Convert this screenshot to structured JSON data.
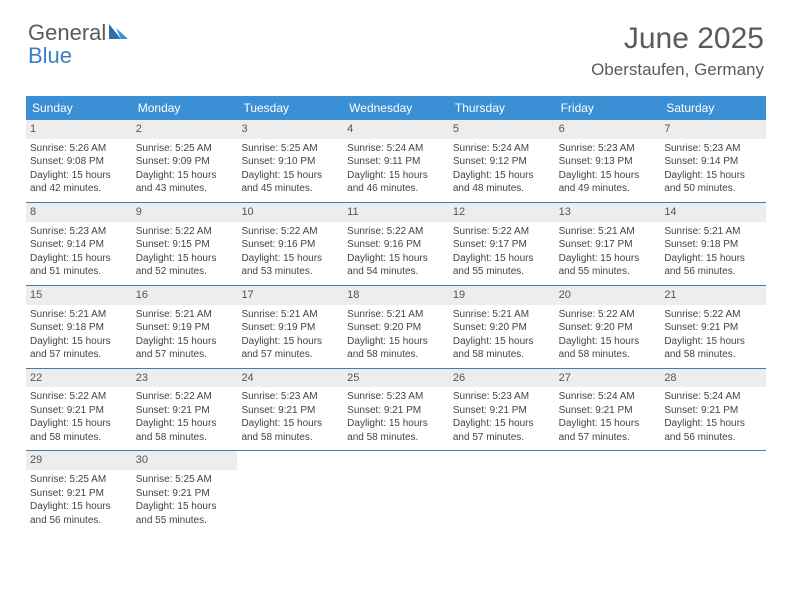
{
  "logo": {
    "text1": "General",
    "text2": "Blue"
  },
  "title": "June 2025",
  "location": "Oberstaufen, Germany",
  "colors": {
    "header_bg": "#3b8fd4",
    "header_text": "#ffffff",
    "daynum_bg": "#ededed",
    "border": "#3b7fb4",
    "body_text": "#444444",
    "title_text": "#5a5a5a",
    "logo_blue": "#3b7fc4"
  },
  "day_headers": [
    "Sunday",
    "Monday",
    "Tuesday",
    "Wednesday",
    "Thursday",
    "Friday",
    "Saturday"
  ],
  "weeks": [
    [
      {
        "n": "1",
        "sr": "Sunrise: 5:26 AM",
        "ss": "Sunset: 9:08 PM",
        "d1": "Daylight: 15 hours",
        "d2": "and 42 minutes."
      },
      {
        "n": "2",
        "sr": "Sunrise: 5:25 AM",
        "ss": "Sunset: 9:09 PM",
        "d1": "Daylight: 15 hours",
        "d2": "and 43 minutes."
      },
      {
        "n": "3",
        "sr": "Sunrise: 5:25 AM",
        "ss": "Sunset: 9:10 PM",
        "d1": "Daylight: 15 hours",
        "d2": "and 45 minutes."
      },
      {
        "n": "4",
        "sr": "Sunrise: 5:24 AM",
        "ss": "Sunset: 9:11 PM",
        "d1": "Daylight: 15 hours",
        "d2": "and 46 minutes."
      },
      {
        "n": "5",
        "sr": "Sunrise: 5:24 AM",
        "ss": "Sunset: 9:12 PM",
        "d1": "Daylight: 15 hours",
        "d2": "and 48 minutes."
      },
      {
        "n": "6",
        "sr": "Sunrise: 5:23 AM",
        "ss": "Sunset: 9:13 PM",
        "d1": "Daylight: 15 hours",
        "d2": "and 49 minutes."
      },
      {
        "n": "7",
        "sr": "Sunrise: 5:23 AM",
        "ss": "Sunset: 9:14 PM",
        "d1": "Daylight: 15 hours",
        "d2": "and 50 minutes."
      }
    ],
    [
      {
        "n": "8",
        "sr": "Sunrise: 5:23 AM",
        "ss": "Sunset: 9:14 PM",
        "d1": "Daylight: 15 hours",
        "d2": "and 51 minutes."
      },
      {
        "n": "9",
        "sr": "Sunrise: 5:22 AM",
        "ss": "Sunset: 9:15 PM",
        "d1": "Daylight: 15 hours",
        "d2": "and 52 minutes."
      },
      {
        "n": "10",
        "sr": "Sunrise: 5:22 AM",
        "ss": "Sunset: 9:16 PM",
        "d1": "Daylight: 15 hours",
        "d2": "and 53 minutes."
      },
      {
        "n": "11",
        "sr": "Sunrise: 5:22 AM",
        "ss": "Sunset: 9:16 PM",
        "d1": "Daylight: 15 hours",
        "d2": "and 54 minutes."
      },
      {
        "n": "12",
        "sr": "Sunrise: 5:22 AM",
        "ss": "Sunset: 9:17 PM",
        "d1": "Daylight: 15 hours",
        "d2": "and 55 minutes."
      },
      {
        "n": "13",
        "sr": "Sunrise: 5:21 AM",
        "ss": "Sunset: 9:17 PM",
        "d1": "Daylight: 15 hours",
        "d2": "and 55 minutes."
      },
      {
        "n": "14",
        "sr": "Sunrise: 5:21 AM",
        "ss": "Sunset: 9:18 PM",
        "d1": "Daylight: 15 hours",
        "d2": "and 56 minutes."
      }
    ],
    [
      {
        "n": "15",
        "sr": "Sunrise: 5:21 AM",
        "ss": "Sunset: 9:18 PM",
        "d1": "Daylight: 15 hours",
        "d2": "and 57 minutes."
      },
      {
        "n": "16",
        "sr": "Sunrise: 5:21 AM",
        "ss": "Sunset: 9:19 PM",
        "d1": "Daylight: 15 hours",
        "d2": "and 57 minutes."
      },
      {
        "n": "17",
        "sr": "Sunrise: 5:21 AM",
        "ss": "Sunset: 9:19 PM",
        "d1": "Daylight: 15 hours",
        "d2": "and 57 minutes."
      },
      {
        "n": "18",
        "sr": "Sunrise: 5:21 AM",
        "ss": "Sunset: 9:20 PM",
        "d1": "Daylight: 15 hours",
        "d2": "and 58 minutes."
      },
      {
        "n": "19",
        "sr": "Sunrise: 5:21 AM",
        "ss": "Sunset: 9:20 PM",
        "d1": "Daylight: 15 hours",
        "d2": "and 58 minutes."
      },
      {
        "n": "20",
        "sr": "Sunrise: 5:22 AM",
        "ss": "Sunset: 9:20 PM",
        "d1": "Daylight: 15 hours",
        "d2": "and 58 minutes."
      },
      {
        "n": "21",
        "sr": "Sunrise: 5:22 AM",
        "ss": "Sunset: 9:21 PM",
        "d1": "Daylight: 15 hours",
        "d2": "and 58 minutes."
      }
    ],
    [
      {
        "n": "22",
        "sr": "Sunrise: 5:22 AM",
        "ss": "Sunset: 9:21 PM",
        "d1": "Daylight: 15 hours",
        "d2": "and 58 minutes."
      },
      {
        "n": "23",
        "sr": "Sunrise: 5:22 AM",
        "ss": "Sunset: 9:21 PM",
        "d1": "Daylight: 15 hours",
        "d2": "and 58 minutes."
      },
      {
        "n": "24",
        "sr": "Sunrise: 5:23 AM",
        "ss": "Sunset: 9:21 PM",
        "d1": "Daylight: 15 hours",
        "d2": "and 58 minutes."
      },
      {
        "n": "25",
        "sr": "Sunrise: 5:23 AM",
        "ss": "Sunset: 9:21 PM",
        "d1": "Daylight: 15 hours",
        "d2": "and 58 minutes."
      },
      {
        "n": "26",
        "sr": "Sunrise: 5:23 AM",
        "ss": "Sunset: 9:21 PM",
        "d1": "Daylight: 15 hours",
        "d2": "and 57 minutes."
      },
      {
        "n": "27",
        "sr": "Sunrise: 5:24 AM",
        "ss": "Sunset: 9:21 PM",
        "d1": "Daylight: 15 hours",
        "d2": "and 57 minutes."
      },
      {
        "n": "28",
        "sr": "Sunrise: 5:24 AM",
        "ss": "Sunset: 9:21 PM",
        "d1": "Daylight: 15 hours",
        "d2": "and 56 minutes."
      }
    ],
    [
      {
        "n": "29",
        "sr": "Sunrise: 5:25 AM",
        "ss": "Sunset: 9:21 PM",
        "d1": "Daylight: 15 hours",
        "d2": "and 56 minutes."
      },
      {
        "n": "30",
        "sr": "Sunrise: 5:25 AM",
        "ss": "Sunset: 9:21 PM",
        "d1": "Daylight: 15 hours",
        "d2": "and 55 minutes."
      },
      null,
      null,
      null,
      null,
      null
    ]
  ]
}
